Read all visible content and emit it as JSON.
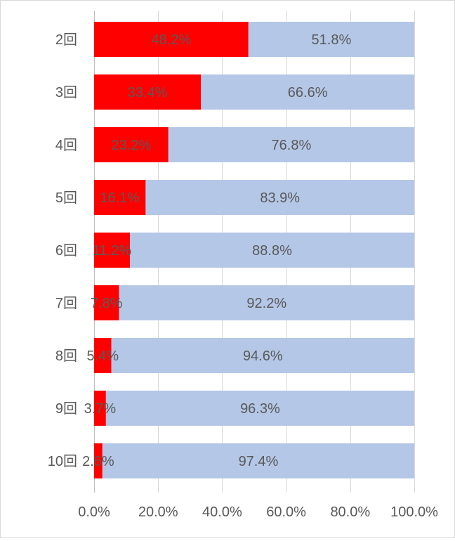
{
  "chart_data": {
    "type": "bar",
    "orientation": "horizontal",
    "stacked": "percent",
    "categories": [
      "2回",
      "3回",
      "4回",
      "5回",
      "6回",
      "7回",
      "8回",
      "9回",
      "10回"
    ],
    "series": [
      {
        "values": [
          48.2,
          33.4,
          23.2,
          16.1,
          11.2,
          7.8,
          5.4,
          3.7,
          2.6
        ],
        "labels": [
          "48.2%",
          "33.4%",
          "23.2%",
          "16.1%",
          "11.2%",
          "7.8%",
          "5.4%",
          "3.7%",
          "2.6%"
        ]
      },
      {
        "values": [
          51.8,
          66.6,
          76.8,
          83.9,
          88.8,
          92.2,
          94.6,
          96.3,
          97.4
        ],
        "labels": [
          "51.8%",
          "66.6%",
          "76.8%",
          "83.9%",
          "88.8%",
          "92.2%",
          "94.6%",
          "96.3%",
          "97.4%"
        ]
      }
    ],
    "xlim": [
      0,
      100
    ],
    "x_ticks": [
      0,
      20,
      40,
      60,
      80,
      100
    ],
    "x_tick_labels": [
      "0.0%",
      "20.0%",
      "40.0%",
      "60.0%",
      "80.0%",
      "100.0%"
    ],
    "grid": "vertical",
    "legend": "none"
  },
  "colors": {
    "series_0": "#ff0000",
    "series_1": "#b4c7e7",
    "grid": "#d9d9d9",
    "axis": "#bfbfbf",
    "text": "#595959"
  }
}
